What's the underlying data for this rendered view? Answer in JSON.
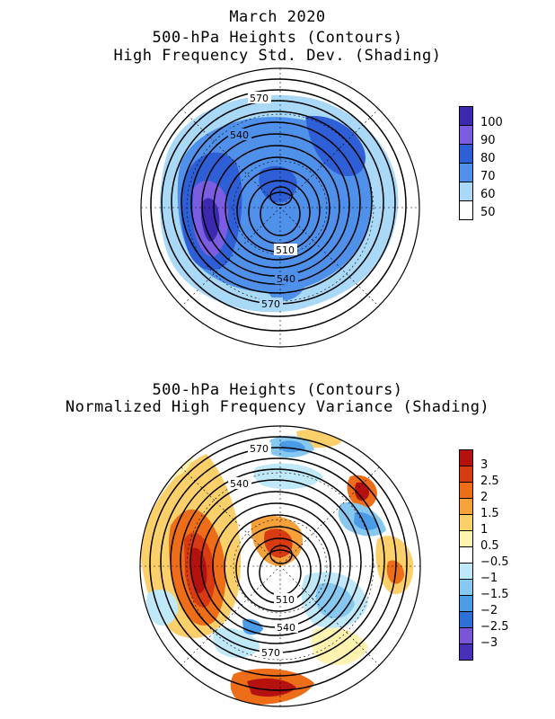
{
  "panels": [
    {
      "title_lines": [
        "March 2020",
        "500-hPa Heights (Contours)",
        "High Frequency Std. Dev. (Shading)"
      ],
      "contour_labels": [
        "570",
        "540",
        "510",
        "540",
        "570"
      ],
      "legend": [
        {
          "label": "100",
          "color": "#3b2ab0"
        },
        {
          "label": "90",
          "color": "#7a5de0"
        },
        {
          "label": "80",
          "color": "#2f5fd6"
        },
        {
          "label": "70",
          "color": "#4f90ea"
        },
        {
          "label": "60",
          "color": "#a9d9f7"
        },
        {
          "label": "50",
          "color": "#ffffff"
        }
      ]
    },
    {
      "title_lines": [
        "500-hPa Heights (Contours)",
        "Normalized High Frequency Variance (Shading)"
      ],
      "contour_labels": [
        "570",
        "540",
        "510",
        "540",
        "570"
      ],
      "legend": [
        {
          "label": "3",
          "color": "#b5120f"
        },
        {
          "label": "2.5",
          "color": "#d83a12"
        },
        {
          "label": "2",
          "color": "#ee6d18"
        },
        {
          "label": "1.5",
          "color": "#f6a13a"
        },
        {
          "label": "1",
          "color": "#fbd06a"
        },
        {
          "label": "0.5",
          "color": "#fff3b0"
        },
        {
          "label": "−0.5",
          "color": "#ffffff"
        },
        {
          "label": "−1",
          "color": "#bfe8f8"
        },
        {
          "label": "−1.5",
          "color": "#86c8f0"
        },
        {
          "label": "−2",
          "color": "#4c9be6"
        },
        {
          "label": "−2.5",
          "color": "#2f6fd8"
        },
        {
          "label": "−3",
          "color": "#7a55d6"
        },
        {
          "label": "",
          "color": "#4a2fb8"
        }
      ]
    }
  ]
}
